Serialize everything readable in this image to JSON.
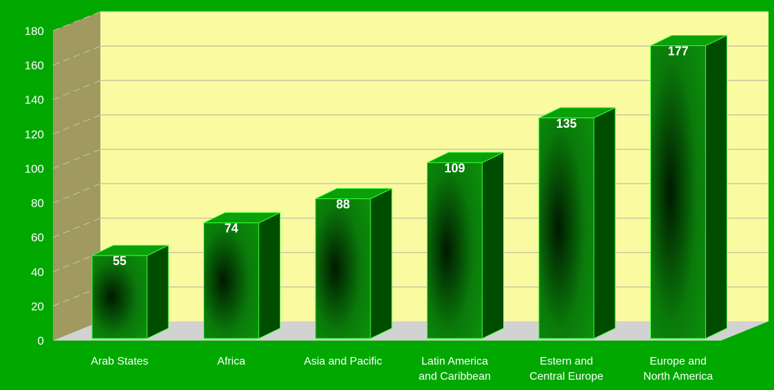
{
  "colors": {
    "background": "#00a800",
    "plot_back_wall": "#fafaa0",
    "left_side_wall": "#a09a60",
    "floor": "#d2d2d2",
    "bar_front_light": "#0a8c0a",
    "bar_front_dark": "#001a00",
    "bar_side": "#004d00",
    "bar_top": "#0aa00a",
    "bar_edge": "#3cff3c",
    "gridline": "#c8c8a0",
    "text": "#ffffff"
  },
  "chart_data": {
    "type": "bar",
    "categories": [
      [
        "Arab States"
      ],
      [
        "Africa"
      ],
      [
        "Asia and Pacific"
      ],
      [
        "Latin America",
        "and Caribbean"
      ],
      [
        "Estern and",
        "Central Europe"
      ],
      [
        "Europe and",
        "North America"
      ]
    ],
    "values": [
      55,
      74,
      88,
      109,
      135,
      177
    ],
    "data_labels": [
      "55",
      "74",
      "88",
      "109",
      "135",
      "177"
    ],
    "ylim": [
      0,
      180
    ],
    "yticks": [
      0,
      20,
      40,
      60,
      80,
      100,
      120,
      140,
      160,
      180
    ],
    "ytick_labels": [
      "0",
      "20",
      "40",
      "60",
      "80",
      "100",
      "120",
      "140",
      "160",
      "180"
    ],
    "grid": true,
    "legend": "none",
    "title": "",
    "xlabel": "",
    "ylabel": "",
    "style": "3d"
  }
}
